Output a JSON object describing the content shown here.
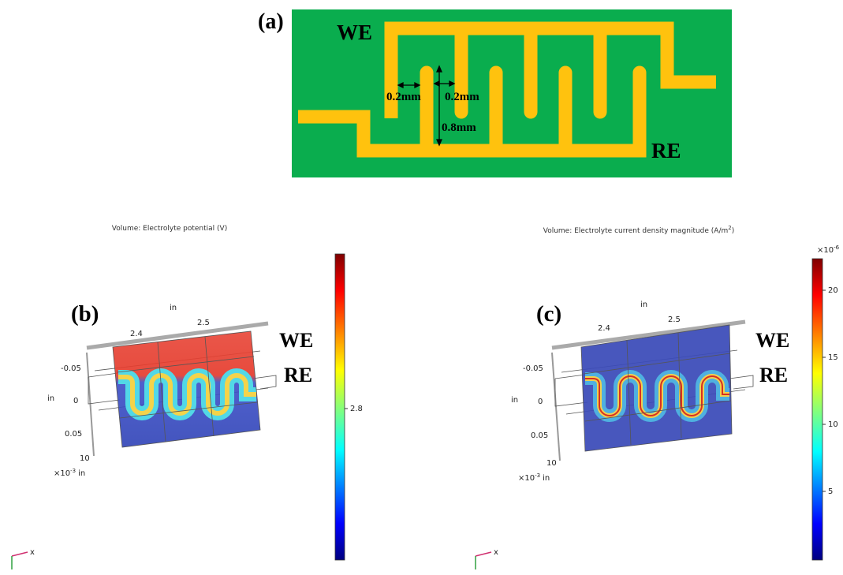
{
  "panel_a": {
    "label": "(a)",
    "we": "WE",
    "re": "RE",
    "gap_1": "0.2mm",
    "gap_2": "0.2mm",
    "length": "0.8mm"
  },
  "panel_b": {
    "label": "(b)",
    "title": "Volume: Electrolyte potential (V)",
    "we": "WE",
    "re": "RE",
    "x_unit": "in",
    "x_ticks": [
      "2.4",
      "2.5"
    ],
    "y_unit": "in",
    "y_ticks": [
      "-0.05",
      "0",
      "0.05"
    ],
    "z_tick": "10",
    "scale_base": "×10",
    "scale_exp": "-3",
    "scale_unit": "in",
    "colorbar_ticks": [
      "2.8"
    ],
    "triad": "x"
  },
  "panel_c": {
    "label": "(c)",
    "title": "Volume: Electrolyte current density magnitude (A/m",
    "title_sup": "2",
    "title_end": ")",
    "we": "WE",
    "re": "RE",
    "x_unit": "in",
    "x_ticks": [
      "2.4",
      "2.5"
    ],
    "y_unit": "in",
    "y_ticks": [
      "-0.05",
      "0",
      "0.05"
    ],
    "z_tick": "10",
    "scale_base": "×10",
    "scale_exp": "-3",
    "scale_unit": "in",
    "colorbar_base": "×10",
    "colorbar_exp": "-6",
    "colorbar_ticks": [
      "20",
      "15",
      "10",
      "5"
    ],
    "triad": "x"
  }
}
